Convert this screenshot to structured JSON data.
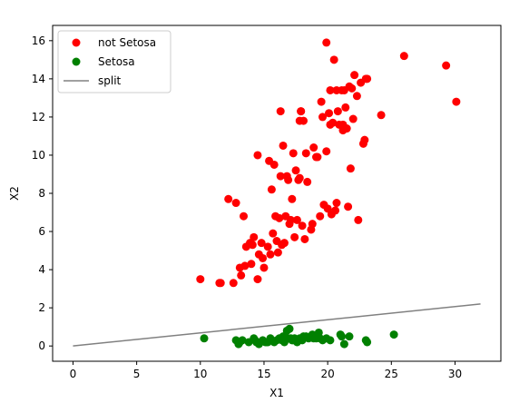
{
  "chart_data": {
    "type": "scatter",
    "title": "",
    "xlabel": "X1",
    "ylabel": "X2",
    "xlim": [
      -1.6,
      33.6
    ],
    "ylim": [
      -0.8,
      16.8
    ],
    "xticks": [
      0,
      5,
      10,
      15,
      20,
      25,
      30
    ],
    "yticks": [
      0,
      2,
      4,
      6,
      8,
      10,
      12,
      14,
      16
    ],
    "grid": false,
    "legend_position": "top-left",
    "series": [
      {
        "name": "not Setosa",
        "kind": "scatter",
        "color": "#ff0000",
        "x": [
          10.0,
          11.6,
          11.5,
          12.2,
          12.6,
          12.8,
          13.1,
          13.4,
          13.6,
          13.9,
          14.0,
          14.2,
          14.5,
          14.6,
          14.8,
          15.0,
          15.3,
          15.5,
          15.6,
          15.9,
          16.0,
          16.1,
          16.3,
          16.4,
          16.7,
          16.9,
          17.1,
          17.2,
          17.4,
          17.6,
          17.8,
          18.0,
          18.2,
          18.4,
          18.7,
          18.9,
          19.2,
          19.4,
          19.7,
          20.0,
          20.3,
          20.6,
          20.9,
          21.2,
          21.6,
          22.0,
          22.4,
          22.9,
          13.2,
          13.5,
          14.1,
          14.9,
          15.4,
          15.7,
          16.2,
          16.6,
          17.0,
          17.5,
          17.9,
          18.3,
          18.8,
          19.1,
          19.6,
          20.1,
          20.4,
          20.8,
          21.3,
          21.7,
          22.1,
          15.8,
          16.8,
          17.3,
          18.1,
          19.5,
          20.7,
          21.5,
          22.3,
          23.1,
          16.5,
          17.7,
          20.2,
          20.5,
          21.1,
          21.4,
          21.9,
          22.6,
          17.8,
          17.9,
          19.9,
          20.2,
          21.2,
          21.8,
          22.8,
          23.0,
          24.2,
          26.0,
          29.3,
          30.1,
          14.5,
          16.3,
          19.9,
          20.7
        ],
        "y": [
          3.5,
          3.3,
          3.3,
          7.7,
          3.3,
          7.5,
          4.1,
          6.8,
          5.2,
          5.4,
          4.3,
          5.7,
          3.5,
          4.8,
          5.4,
          4.1,
          5.2,
          4.8,
          8.2,
          6.8,
          5.5,
          4.9,
          8.9,
          5.3,
          6.8,
          8.7,
          6.6,
          7.7,
          5.7,
          6.6,
          8.8,
          6.3,
          5.6,
          8.6,
          6.1,
          10.4,
          9.9,
          6.8,
          7.4,
          7.2,
          6.9,
          7.1,
          11.6,
          11.3,
          7.3,
          11.9,
          6.6,
          10.8,
          3.7,
          4.2,
          5.3,
          4.6,
          9.7,
          5.9,
          6.7,
          5.4,
          6.4,
          9.2,
          12.3,
          10.1,
          6.4,
          9.9,
          12.0,
          12.2,
          11.7,
          12.3,
          13.4,
          13.6,
          14.2,
          9.5,
          8.9,
          10.1,
          11.8,
          12.8,
          13.4,
          11.4,
          13.1,
          14.0,
          10.5,
          8.7,
          11.6,
          15.0,
          13.4,
          12.5,
          13.5,
          13.8,
          11.8,
          12.3,
          15.9,
          13.4,
          11.6,
          9.3,
          10.6,
          14.0,
          12.1,
          15.2,
          14.7,
          12.8,
          10.0,
          12.3,
          10.2,
          7.5
        ]
      },
      {
        "name": "Setosa",
        "kind": "scatter",
        "color": "#008000",
        "x": [
          10.3,
          12.8,
          13.0,
          13.3,
          13.8,
          14.2,
          14.4,
          14.6,
          14.9,
          15.1,
          15.3,
          15.5,
          15.6,
          15.8,
          16.0,
          16.2,
          16.4,
          16.6,
          16.8,
          17.0,
          17.2,
          17.4,
          17.6,
          17.8,
          18.0,
          18.3,
          18.5,
          18.8,
          19.1,
          19.3,
          19.6,
          19.9,
          20.2,
          21.0,
          21.3,
          21.7,
          23.0,
          25.2,
          14.3,
          15.2,
          16.9,
          17.3,
          18.1,
          19.4,
          21.1,
          14.7,
          16.5,
          17.1,
          17.5,
          18.9,
          13.1,
          23.1
        ],
        "y": [
          0.4,
          0.3,
          0.1,
          0.3,
          0.2,
          0.4,
          0.2,
          0.1,
          0.3,
          0.2,
          0.2,
          0.4,
          0.3,
          0.2,
          0.3,
          0.4,
          0.3,
          0.2,
          0.8,
          0.9,
          0.3,
          0.4,
          0.2,
          0.4,
          0.3,
          0.5,
          0.4,
          0.6,
          0.4,
          0.7,
          0.3,
          0.4,
          0.3,
          0.6,
          0.1,
          0.5,
          0.3,
          0.6,
          0.3,
          0.2,
          0.4,
          0.3,
          0.5,
          0.4,
          0.5,
          0.2,
          0.5,
          0.4,
          0.3,
          0.4,
          0.2,
          0.2
        ]
      },
      {
        "name": "split",
        "kind": "line",
        "color": "#808080",
        "x": [
          0,
          32
        ],
        "y": [
          0,
          2.2
        ]
      }
    ]
  }
}
